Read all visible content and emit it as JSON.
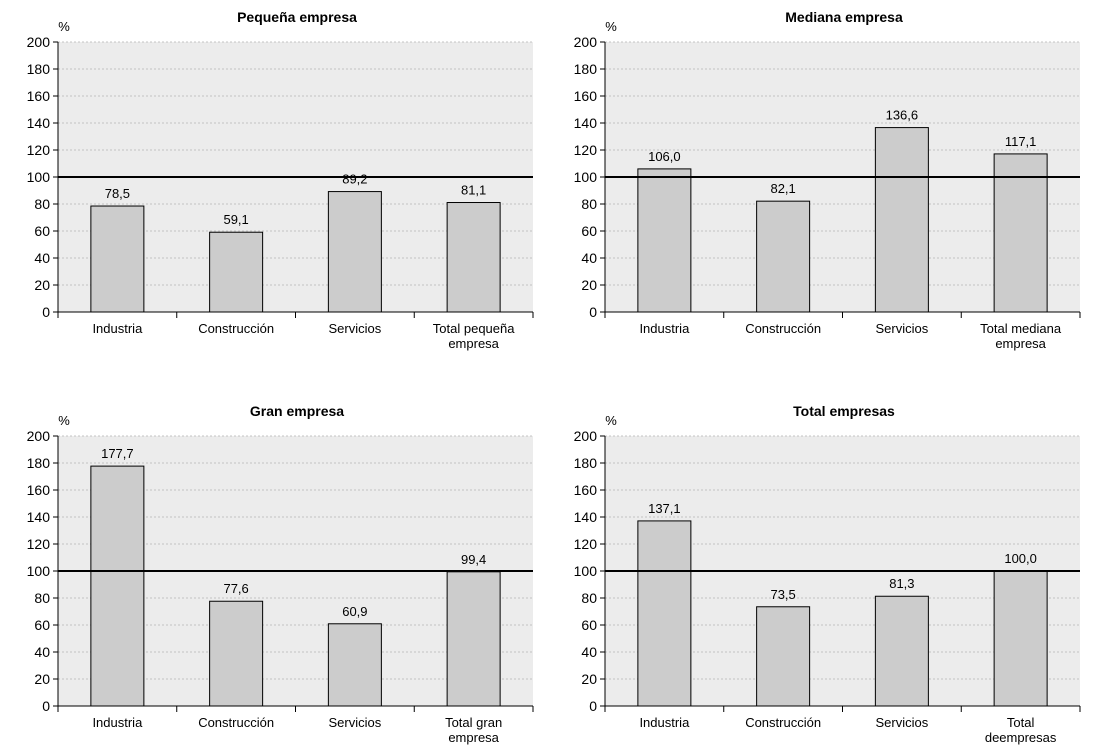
{
  "chart_data": [
    {
      "type": "bar",
      "title": "Pequeña empresa",
      "ylabel": "%",
      "ylim": [
        0,
        200
      ],
      "yticks": [
        0,
        20,
        40,
        60,
        80,
        100,
        120,
        140,
        160,
        180,
        200
      ],
      "reference_line": 100,
      "grid": true,
      "categories": [
        [
          "Industria"
        ],
        [
          "Construcción"
        ],
        [
          "Servicios"
        ],
        [
          "Total pequeña",
          "empresa"
        ]
      ],
      "values": [
        78.5,
        59.1,
        89.2,
        81.1
      ],
      "value_labels": [
        "78,5",
        "59,1",
        "89,2",
        "81,1"
      ]
    },
    {
      "type": "bar",
      "title": "Mediana empresa",
      "ylabel": "%",
      "ylim": [
        0,
        200
      ],
      "yticks": [
        0,
        20,
        40,
        60,
        80,
        100,
        120,
        140,
        160,
        180,
        200
      ],
      "reference_line": 100,
      "grid": true,
      "categories": [
        [
          "Industria"
        ],
        [
          "Construcción"
        ],
        [
          "Servicios"
        ],
        [
          "Total mediana",
          "empresa"
        ]
      ],
      "values": [
        106.0,
        82.1,
        136.6,
        117.1
      ],
      "value_labels": [
        "106,0",
        "82,1",
        "136,6",
        "117,1"
      ]
    },
    {
      "type": "bar",
      "title": "Gran empresa",
      "ylabel": "%",
      "ylim": [
        0,
        200
      ],
      "yticks": [
        0,
        20,
        40,
        60,
        80,
        100,
        120,
        140,
        160,
        180,
        200
      ],
      "reference_line": 100,
      "grid": true,
      "categories": [
        [
          "Industria"
        ],
        [
          "Construcción"
        ],
        [
          "Servicios"
        ],
        [
          "Total gran",
          "empresa"
        ]
      ],
      "values": [
        177.7,
        77.6,
        60.9,
        99.4
      ],
      "value_labels": [
        "177,7",
        "77,6",
        "60,9",
        "99,4"
      ]
    },
    {
      "type": "bar",
      "title": "Total empresas",
      "ylabel": "%",
      "ylim": [
        0,
        200
      ],
      "yticks": [
        0,
        20,
        40,
        60,
        80,
        100,
        120,
        140,
        160,
        180,
        200
      ],
      "reference_line": 100,
      "grid": true,
      "categories": [
        [
          "Industria"
        ],
        [
          "Construcción"
        ],
        [
          "Servicios"
        ],
        [
          "Total",
          "deempresas"
        ]
      ],
      "values": [
        137.1,
        73.5,
        81.3,
        100.0
      ],
      "value_labels": [
        "137,1",
        "73,5",
        "81,3",
        "100,0"
      ]
    }
  ],
  "colors": {
    "plot_background": "#ececec",
    "bar_fill": "#cccccc",
    "bar_stroke": "#000000",
    "gridline": "#b4b4b4",
    "reference_line": "#000000"
  }
}
